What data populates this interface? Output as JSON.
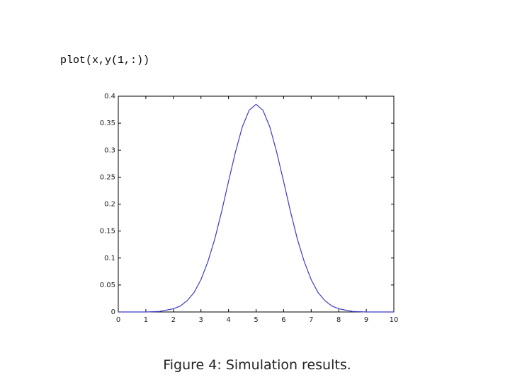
{
  "code": "plot(x,y(1,:))",
  "caption": "Figure 4: Simulation results.",
  "chart_data": {
    "type": "line",
    "x": [
      0,
      1,
      1.5,
      2,
      2.25,
      2.5,
      2.75,
      3,
      3.25,
      3.5,
      3.75,
      4,
      4.25,
      4.5,
      4.75,
      5,
      5.25,
      5.5,
      5.75,
      6,
      6.25,
      6.5,
      6.75,
      7,
      7.25,
      7.5,
      7.75,
      8,
      8.5,
      9,
      10
    ],
    "series": [
      {
        "color": "#3c3cc8",
        "values": [
          0,
          0,
          0.001,
          0.006,
          0.011,
          0.021,
          0.036,
          0.06,
          0.093,
          0.135,
          0.186,
          0.242,
          0.296,
          0.343,
          0.374,
          0.385,
          0.374,
          0.343,
          0.296,
          0.242,
          0.186,
          0.135,
          0.093,
          0.06,
          0.036,
          0.021,
          0.011,
          0.006,
          0.001,
          0,
          0
        ]
      }
    ],
    "xlim": [
      0,
      10
    ],
    "xticks": [
      0,
      1,
      2,
      3,
      4,
      5,
      6,
      7,
      8,
      9,
      10
    ],
    "ylim": [
      0,
      0.4
    ],
    "yticks": [
      0,
      0.05,
      0.1,
      0.15,
      0.2,
      0.25,
      0.3,
      0.35,
      0.4
    ],
    "grid": false
  }
}
